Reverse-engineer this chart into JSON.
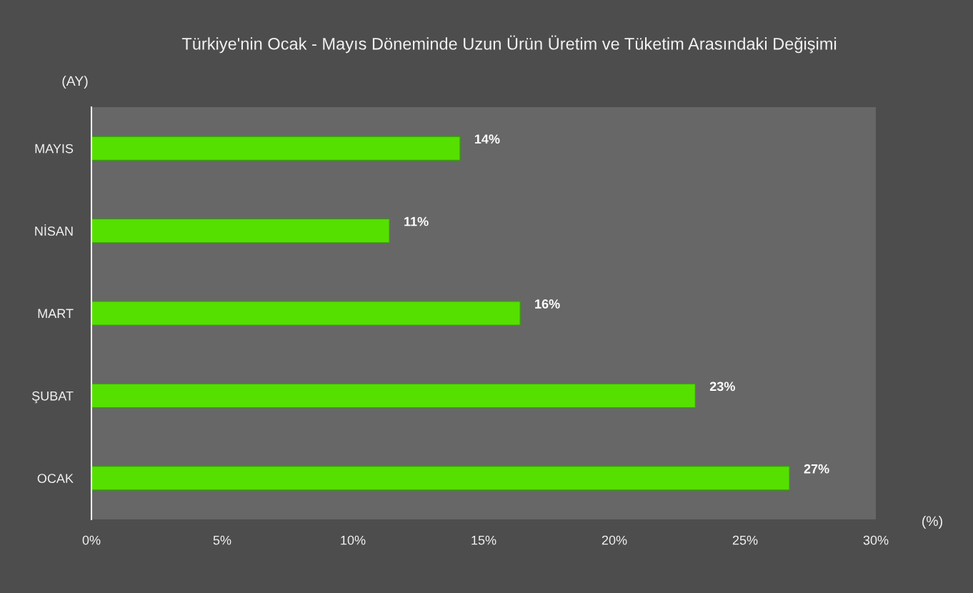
{
  "chart_data": {
    "type": "bar",
    "orientation": "horizontal",
    "title": "Türkiye'nin Ocak - Mayıs Döneminde Uzun Ürün Üretim ve Tüketim Arasındaki Değişimi",
    "ylabel": "(AY)",
    "xlabel": "(%)",
    "categories": [
      "MAYIS",
      "NİSAN",
      "MART",
      "ŞUBAT",
      "OCAK"
    ],
    "values": [
      14.1,
      11.4,
      16.4,
      23.1,
      26.7
    ],
    "value_labels": [
      "14%",
      "11%",
      "16%",
      "23%",
      "27%"
    ],
    "color": "#55e000",
    "xlim": [
      0,
      30
    ],
    "xticks": [
      {
        "value": 0,
        "label": "0%"
      },
      {
        "value": 5,
        "label": "5%"
      },
      {
        "value": 10,
        "label": "10%"
      },
      {
        "value": 15,
        "label": "15%"
      },
      {
        "value": 20,
        "label": "20%"
      },
      {
        "value": 25,
        "label": "25%"
      },
      {
        "value": 30,
        "label": "30%"
      }
    ],
    "grid": false
  }
}
